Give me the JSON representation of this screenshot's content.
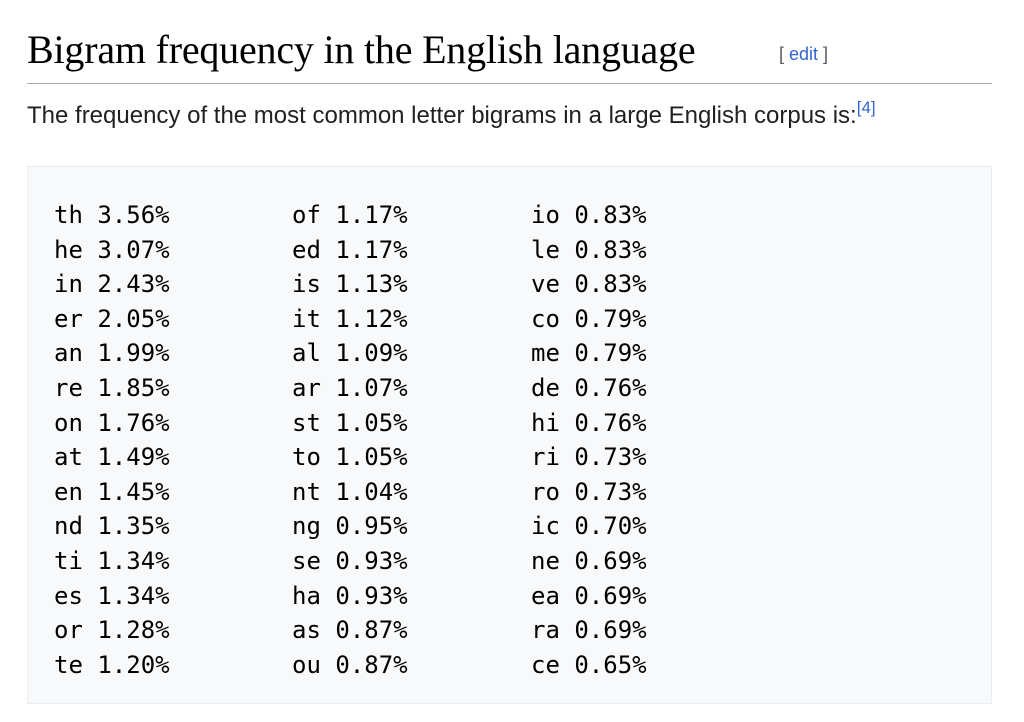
{
  "heading": {
    "title": "Bigram frequency in the English language",
    "edit_open": "[ ",
    "edit_label": "edit",
    "edit_close": " ]"
  },
  "intro": {
    "text": "The frequency of the most common letter bigrams in a large English corpus is:",
    "ref": "[4]"
  },
  "bigrams": {
    "columns": [
      [
        {
          "pair": "th",
          "freq": "3.56%"
        },
        {
          "pair": "he",
          "freq": "3.07%"
        },
        {
          "pair": "in",
          "freq": "2.43%"
        },
        {
          "pair": "er",
          "freq": "2.05%"
        },
        {
          "pair": "an",
          "freq": "1.99%"
        },
        {
          "pair": "re",
          "freq": "1.85%"
        },
        {
          "pair": "on",
          "freq": "1.76%"
        },
        {
          "pair": "at",
          "freq": "1.49%"
        },
        {
          "pair": "en",
          "freq": "1.45%"
        },
        {
          "pair": "nd",
          "freq": "1.35%"
        },
        {
          "pair": "ti",
          "freq": "1.34%"
        },
        {
          "pair": "es",
          "freq": "1.34%"
        },
        {
          "pair": "or",
          "freq": "1.28%"
        },
        {
          "pair": "te",
          "freq": "1.20%"
        }
      ],
      [
        {
          "pair": "of",
          "freq": "1.17%"
        },
        {
          "pair": "ed",
          "freq": "1.17%"
        },
        {
          "pair": "is",
          "freq": "1.13%"
        },
        {
          "pair": "it",
          "freq": "1.12%"
        },
        {
          "pair": "al",
          "freq": "1.09%"
        },
        {
          "pair": "ar",
          "freq": "1.07%"
        },
        {
          "pair": "st",
          "freq": "1.05%"
        },
        {
          "pair": "to",
          "freq": "1.05%"
        },
        {
          "pair": "nt",
          "freq": "1.04%"
        },
        {
          "pair": "ng",
          "freq": "0.95%"
        },
        {
          "pair": "se",
          "freq": "0.93%"
        },
        {
          "pair": "ha",
          "freq": "0.93%"
        },
        {
          "pair": "as",
          "freq": "0.87%"
        },
        {
          "pair": "ou",
          "freq": "0.87%"
        }
      ],
      [
        {
          "pair": "io",
          "freq": "0.83%"
        },
        {
          "pair": "le",
          "freq": "0.83%"
        },
        {
          "pair": "ve",
          "freq": "0.83%"
        },
        {
          "pair": "co",
          "freq": "0.79%"
        },
        {
          "pair": "me",
          "freq": "0.79%"
        },
        {
          "pair": "de",
          "freq": "0.76%"
        },
        {
          "pair": "hi",
          "freq": "0.76%"
        },
        {
          "pair": "ri",
          "freq": "0.73%"
        },
        {
          "pair": "ro",
          "freq": "0.73%"
        },
        {
          "pair": "ic",
          "freq": "0.70%"
        },
        {
          "pair": "ne",
          "freq": "0.69%"
        },
        {
          "pair": "ea",
          "freq": "0.69%"
        },
        {
          "pair": "ra",
          "freq": "0.69%"
        },
        {
          "pair": "ce",
          "freq": "0.65%"
        }
      ]
    ]
  },
  "colors": {
    "link": "#3366cc",
    "text": "#202122",
    "pre_background": "#f8f9fa",
    "pre_border": "#eaecf0",
    "heading_rule": "#a2a9b1"
  }
}
